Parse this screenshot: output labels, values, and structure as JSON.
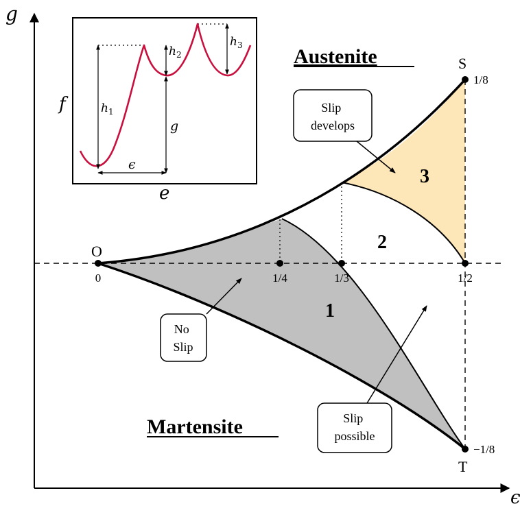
{
  "axes": {
    "y_label": "g",
    "x_label": "ϵ"
  },
  "phases": {
    "austenite": "Austenite",
    "martensite": "Martensite"
  },
  "points": {
    "O": "O",
    "S": "S",
    "T": "T"
  },
  "ticks": {
    "x0": "0",
    "x_quarter": "1/4",
    "x_third": "1/3",
    "x_half": "1/2",
    "y_top": "1/8",
    "y_bottom": "−1/8"
  },
  "regions": {
    "r1": "1",
    "r2": "2",
    "r3": "3"
  },
  "callouts": {
    "slip_develops": [
      "Slip",
      "develops"
    ],
    "no_slip": [
      "No",
      "Slip"
    ],
    "slip_possible": [
      "Slip",
      "possible"
    ]
  },
  "inset": {
    "f_label": "f",
    "e_label": "e",
    "h1": "h",
    "h1_sub": "1",
    "h2": "h",
    "h2_sub": "2",
    "h3": "h",
    "h3_sub": "3",
    "g_label": "g",
    "eps_label": "ϵ"
  },
  "colors": {
    "region1_fill": "#c0c0c0",
    "region3_fill": "#fde6b8",
    "inset_curve": "#c8103e",
    "line": "#000000"
  }
}
